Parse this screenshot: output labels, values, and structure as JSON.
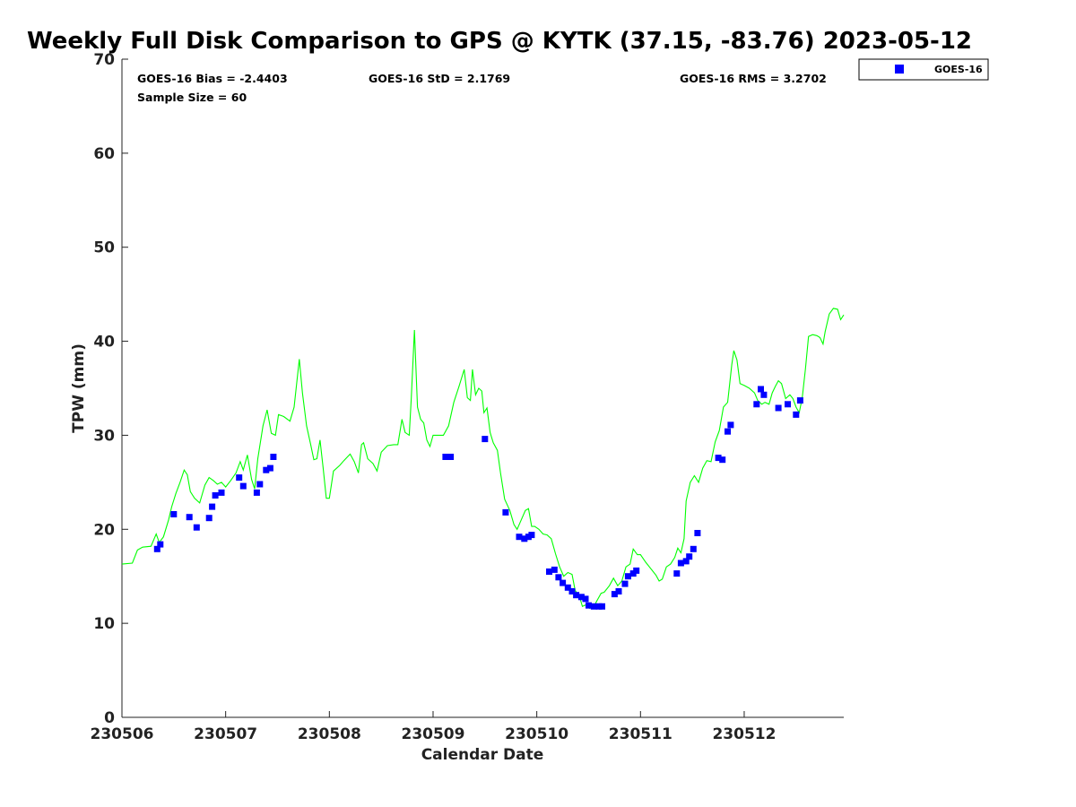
{
  "chart_data": {
    "type": "scatter",
    "title": "Weekly Full Disk Comparison to GPS @ KYTK (37.15, -83.76) 2023-05-12",
    "xlabel": "Calendar Date",
    "ylabel": "TPW (mm)",
    "xlim": [
      0,
      6.96
    ],
    "ylim": [
      0,
      70
    ],
    "x_unit": "days after 230506",
    "x_ticks": [
      {
        "value": 0,
        "label": "230506"
      },
      {
        "value": 1,
        "label": "230507"
      },
      {
        "value": 2,
        "label": "230508"
      },
      {
        "value": 3,
        "label": "230509"
      },
      {
        "value": 4,
        "label": "230510"
      },
      {
        "value": 5,
        "label": "230511"
      },
      {
        "value": 6,
        "label": "230512"
      }
    ],
    "y_ticks": [
      0,
      10,
      20,
      30,
      40,
      50,
      60,
      70
    ],
    "stats": {
      "bias": "GOES-16 Bias = -2.4403",
      "std": "GOES-16 StD = 2.1769",
      "rms": "GOES-16 RMS = 3.2702",
      "sample": "Sample Size = 60"
    },
    "legend": {
      "position": "top-right, outside plot",
      "entries": [
        "GOES-16"
      ]
    },
    "series": [
      {
        "name": "GOES-16",
        "kind": "scatter",
        "color": "#0000ff",
        "points": [
          [
            0.34,
            17.9
          ],
          [
            0.37,
            18.4
          ],
          [
            0.5,
            21.6
          ],
          [
            0.65,
            21.3
          ],
          [
            0.72,
            20.2
          ],
          [
            0.84,
            21.2
          ],
          [
            0.87,
            22.4
          ],
          [
            0.9,
            23.6
          ],
          [
            0.96,
            23.9
          ],
          [
            1.13,
            25.5
          ],
          [
            1.17,
            24.6
          ],
          [
            1.3,
            23.9
          ],
          [
            1.33,
            24.8
          ],
          [
            1.39,
            26.3
          ],
          [
            1.43,
            26.5
          ],
          [
            1.46,
            27.7
          ],
          [
            3.12,
            27.7
          ],
          [
            3.17,
            27.7
          ],
          [
            3.5,
            29.6
          ],
          [
            3.7,
            21.8
          ],
          [
            3.83,
            19.2
          ],
          [
            3.88,
            19.0
          ],
          [
            3.92,
            19.2
          ],
          [
            3.95,
            19.4
          ],
          [
            4.12,
            15.5
          ],
          [
            4.17,
            15.7
          ],
          [
            4.21,
            14.9
          ],
          [
            4.25,
            14.3
          ],
          [
            4.3,
            13.8
          ],
          [
            4.34,
            13.4
          ],
          [
            4.38,
            13.0
          ],
          [
            4.43,
            12.8
          ],
          [
            4.47,
            12.6
          ],
          [
            4.5,
            11.9
          ],
          [
            4.55,
            11.8
          ],
          [
            4.6,
            11.8
          ],
          [
            4.63,
            11.8
          ],
          [
            4.75,
            13.1
          ],
          [
            4.79,
            13.4
          ],
          [
            4.85,
            14.2
          ],
          [
            4.88,
            15.0
          ],
          [
            4.93,
            15.3
          ],
          [
            4.96,
            15.6
          ],
          [
            5.35,
            15.3
          ],
          [
            5.39,
            16.4
          ],
          [
            5.44,
            16.6
          ],
          [
            5.47,
            17.1
          ],
          [
            5.51,
            17.9
          ],
          [
            5.55,
            19.6
          ],
          [
            5.75,
            27.6
          ],
          [
            5.79,
            27.4
          ],
          [
            5.84,
            30.4
          ],
          [
            5.87,
            31.1
          ],
          [
            6.12,
            33.3
          ],
          [
            6.16,
            34.9
          ],
          [
            6.19,
            34.3
          ],
          [
            6.33,
            32.9
          ],
          [
            6.42,
            33.3
          ],
          [
            6.5,
            32.2
          ],
          [
            6.54,
            33.7
          ]
        ]
      },
      {
        "name": "",
        "kind": "line",
        "color": "#00ff00",
        "points": [
          [
            0.0,
            16.3
          ],
          [
            0.1,
            16.4
          ],
          [
            0.15,
            17.8
          ],
          [
            0.2,
            18.1
          ],
          [
            0.28,
            18.2
          ],
          [
            0.33,
            19.5
          ],
          [
            0.36,
            18.6
          ],
          [
            0.4,
            19.2
          ],
          [
            0.45,
            21.0
          ],
          [
            0.48,
            22.4
          ],
          [
            0.52,
            23.8
          ],
          [
            0.56,
            25.0
          ],
          [
            0.6,
            26.3
          ],
          [
            0.63,
            25.8
          ],
          [
            0.66,
            24.0
          ],
          [
            0.7,
            23.3
          ],
          [
            0.75,
            22.8
          ],
          [
            0.8,
            24.7
          ],
          [
            0.84,
            25.5
          ],
          [
            0.88,
            25.2
          ],
          [
            0.92,
            24.8
          ],
          [
            0.96,
            25.0
          ],
          [
            1.0,
            24.5
          ],
          [
            1.05,
            25.2
          ],
          [
            1.1,
            26.0
          ],
          [
            1.14,
            27.2
          ],
          [
            1.17,
            26.3
          ],
          [
            1.21,
            27.9
          ],
          [
            1.25,
            25.3
          ],
          [
            1.28,
            24.3
          ],
          [
            1.31,
            27.5
          ],
          [
            1.36,
            31.0
          ],
          [
            1.4,
            32.7
          ],
          [
            1.44,
            30.2
          ],
          [
            1.48,
            30.0
          ],
          [
            1.51,
            32.2
          ],
          [
            1.56,
            32.0
          ],
          [
            1.62,
            31.5
          ],
          [
            1.66,
            33.0
          ],
          [
            1.71,
            38.1
          ],
          [
            1.74,
            34.5
          ],
          [
            1.78,
            31.0
          ],
          [
            1.82,
            29.0
          ],
          [
            1.85,
            27.4
          ],
          [
            1.88,
            27.5
          ],
          [
            1.91,
            29.5
          ],
          [
            1.94,
            26.5
          ],
          [
            1.97,
            23.3
          ],
          [
            2.0,
            23.3
          ],
          [
            2.04,
            26.2
          ],
          [
            2.1,
            26.8
          ],
          [
            2.14,
            27.3
          ],
          [
            2.2,
            28.0
          ],
          [
            2.24,
            27.2
          ],
          [
            2.28,
            26.0
          ],
          [
            2.31,
            29.0
          ],
          [
            2.33,
            29.2
          ],
          [
            2.37,
            27.5
          ],
          [
            2.42,
            27.0
          ],
          [
            2.46,
            26.2
          ],
          [
            2.5,
            28.2
          ],
          [
            2.56,
            28.9
          ],
          [
            2.62,
            29.0
          ],
          [
            2.66,
            29.0
          ],
          [
            2.7,
            31.7
          ],
          [
            2.73,
            30.3
          ],
          [
            2.77,
            30.0
          ],
          [
            2.79,
            34.0
          ],
          [
            2.82,
            41.2
          ],
          [
            2.85,
            33.0
          ],
          [
            2.88,
            31.7
          ],
          [
            2.91,
            31.3
          ],
          [
            2.94,
            29.5
          ],
          [
            2.97,
            28.8
          ],
          [
            3.0,
            30.0
          ],
          [
            3.05,
            30.0
          ],
          [
            3.1,
            30.0
          ],
          [
            3.15,
            31.0
          ],
          [
            3.2,
            33.5
          ],
          [
            3.25,
            35.2
          ],
          [
            3.3,
            37.0
          ],
          [
            3.33,
            34.0
          ],
          [
            3.36,
            33.7
          ],
          [
            3.38,
            37.0
          ],
          [
            3.41,
            34.3
          ],
          [
            3.44,
            35.0
          ],
          [
            3.47,
            34.7
          ],
          [
            3.49,
            32.4
          ],
          [
            3.52,
            32.9
          ],
          [
            3.55,
            30.3
          ],
          [
            3.58,
            29.2
          ],
          [
            3.62,
            28.4
          ],
          [
            3.65,
            26.0
          ],
          [
            3.69,
            23.2
          ],
          [
            3.74,
            22.0
          ],
          [
            3.78,
            20.5
          ],
          [
            3.81,
            20.0
          ],
          [
            3.85,
            21.0
          ],
          [
            3.89,
            22.0
          ],
          [
            3.92,
            22.2
          ],
          [
            3.95,
            20.3
          ],
          [
            3.98,
            20.3
          ],
          [
            4.02,
            20.0
          ],
          [
            4.06,
            19.5
          ],
          [
            4.1,
            19.4
          ],
          [
            4.14,
            19.0
          ],
          [
            4.18,
            17.4
          ],
          [
            4.22,
            16.0
          ],
          [
            4.26,
            15.0
          ],
          [
            4.3,
            15.4
          ],
          [
            4.34,
            15.2
          ],
          [
            4.37,
            13.5
          ],
          [
            4.41,
            12.9
          ],
          [
            4.44,
            11.8
          ],
          [
            4.48,
            12.0
          ],
          [
            4.51,
            11.6
          ],
          [
            4.55,
            11.8
          ],
          [
            4.58,
            12.4
          ],
          [
            4.62,
            13.2
          ],
          [
            4.65,
            13.3
          ],
          [
            4.7,
            14.0
          ],
          [
            4.74,
            14.8
          ],
          [
            4.78,
            14.0
          ],
          [
            4.82,
            14.5
          ],
          [
            4.86,
            16.0
          ],
          [
            4.9,
            16.3
          ],
          [
            4.93,
            17.9
          ],
          [
            4.97,
            17.3
          ],
          [
            5.0,
            17.3
          ],
          [
            5.05,
            16.5
          ],
          [
            5.1,
            15.8
          ],
          [
            5.15,
            15.1
          ],
          [
            5.18,
            14.5
          ],
          [
            5.21,
            14.7
          ],
          [
            5.25,
            16.0
          ],
          [
            5.29,
            16.3
          ],
          [
            5.33,
            17.0
          ],
          [
            5.36,
            18.0
          ],
          [
            5.39,
            17.5
          ],
          [
            5.42,
            19.0
          ],
          [
            5.44,
            23.0
          ],
          [
            5.48,
            25.0
          ],
          [
            5.52,
            25.7
          ],
          [
            5.56,
            25.0
          ],
          [
            5.6,
            26.5
          ],
          [
            5.64,
            27.3
          ],
          [
            5.68,
            27.2
          ],
          [
            5.72,
            29.3
          ],
          [
            5.76,
            30.5
          ],
          [
            5.8,
            33.0
          ],
          [
            5.84,
            33.5
          ],
          [
            5.86,
            35.5
          ],
          [
            5.88,
            37.5
          ],
          [
            5.9,
            39.0
          ],
          [
            5.93,
            38.0
          ],
          [
            5.96,
            35.5
          ],
          [
            6.0,
            35.3
          ],
          [
            6.05,
            35.0
          ],
          [
            6.1,
            34.5
          ],
          [
            6.13,
            33.7
          ],
          [
            6.17,
            33.3
          ],
          [
            6.2,
            33.5
          ],
          [
            6.24,
            33.3
          ],
          [
            6.27,
            34.5
          ],
          [
            6.3,
            35.2
          ],
          [
            6.33,
            35.8
          ],
          [
            6.36,
            35.5
          ],
          [
            6.4,
            33.9
          ],
          [
            6.44,
            34.3
          ],
          [
            6.47,
            33.9
          ],
          [
            6.5,
            33.0
          ],
          [
            6.53,
            32.4
          ],
          [
            6.56,
            34.0
          ],
          [
            6.59,
            37.0
          ],
          [
            6.62,
            40.5
          ],
          [
            6.66,
            40.7
          ],
          [
            6.7,
            40.6
          ],
          [
            6.73,
            40.4
          ],
          [
            6.76,
            39.7
          ],
          [
            6.78,
            41.0
          ],
          [
            6.82,
            42.9
          ],
          [
            6.86,
            43.5
          ],
          [
            6.9,
            43.4
          ],
          [
            6.93,
            42.3
          ],
          [
            6.96,
            42.8
          ]
        ]
      }
    ]
  }
}
